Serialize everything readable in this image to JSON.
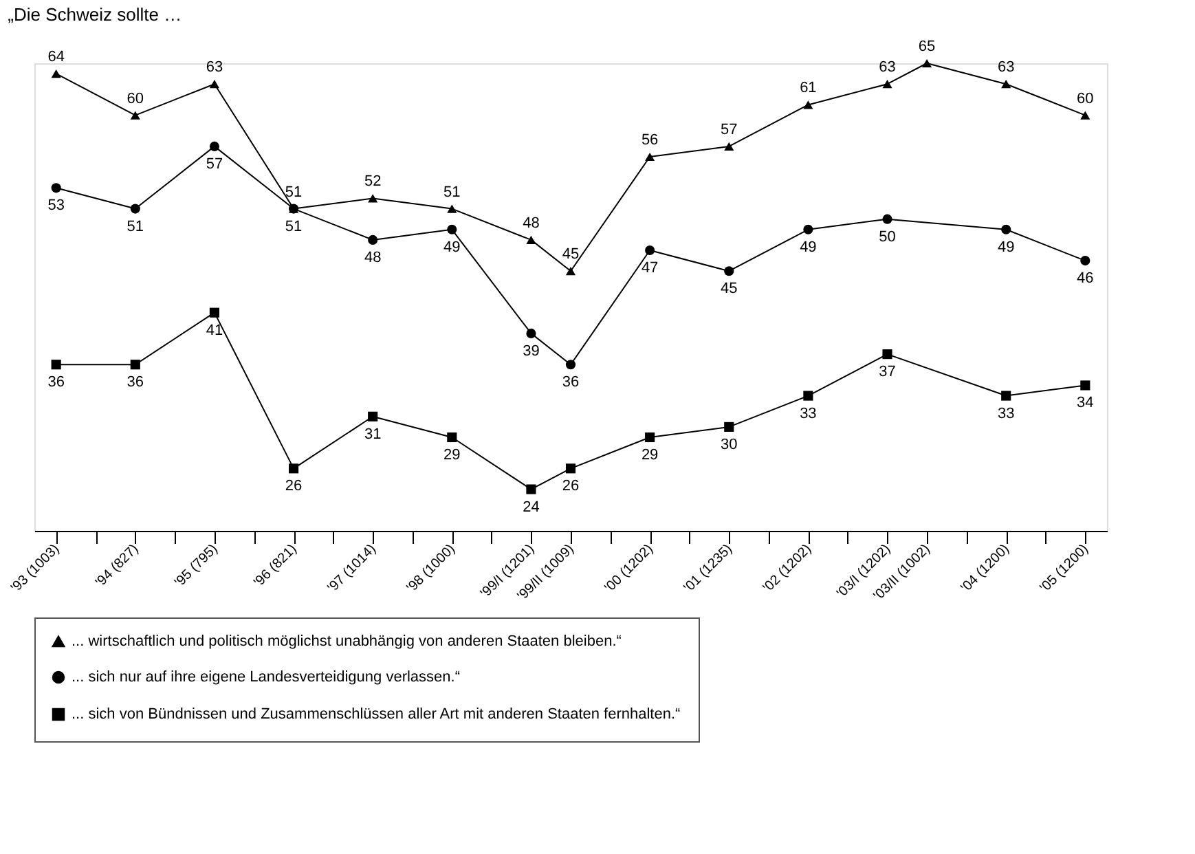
{
  "chart_data": {
    "type": "line",
    "title": "„Die Schweiz sollte …",
    "categories": [
      "'93 (1003)",
      null,
      "'94 (827)",
      null,
      "'95 (795)",
      null,
      "'96 (821)",
      null,
      "'97 (1014)",
      null,
      "'98 (1000)",
      null,
      "'99/I (1201)",
      "'99/II (1009)",
      null,
      "'00 (1202)",
      null,
      "'01 (1235)",
      null,
      "'02 (1202)",
      null,
      "'03/I (1202)",
      "'03/II (1002)",
      null,
      "'04 (1200)",
      null,
      "'05 (1200)"
    ],
    "tick_labels": "x",
    "data_labels": true,
    "legend": "bottom",
    "line_style": "solid",
    "series": [
      {
        "name": "... wirtschaftlich und politisch möglichst unabhängig von anderen Staaten bleiben.“",
        "color": "#000000",
        "marker": "triangle",
        "values": [
          64,
          null,
          60,
          null,
          63,
          null,
          51,
          null,
          52,
          null,
          51,
          null,
          48,
          45,
          null,
          56,
          null,
          57,
          null,
          61,
          null,
          63,
          65,
          null,
          63,
          null,
          60
        ]
      },
      {
        "name": "... sich nur auf ihre eigene Landesverteidigung verlassen.“",
        "color": "#000000",
        "marker": "circle",
        "values": [
          53,
          null,
          51,
          null,
          57,
          null,
          51,
          null,
          48,
          null,
          49,
          null,
          39,
          36,
          null,
          47,
          null,
          45,
          null,
          49,
          null,
          50,
          null,
          null,
          49,
          null,
          46
        ]
      },
      {
        "name": "... sich von Bündnissen und Zusammenschlüssen aller Art mit anderen Staaten fernhalten.“",
        "color": "#000000",
        "marker": "square",
        "values": [
          36,
          null,
          36,
          null,
          41,
          null,
          26,
          null,
          31,
          null,
          29,
          null,
          24,
          26,
          null,
          29,
          null,
          30,
          null,
          33,
          null,
          37,
          null,
          null,
          33,
          null,
          34
        ]
      }
    ]
  }
}
